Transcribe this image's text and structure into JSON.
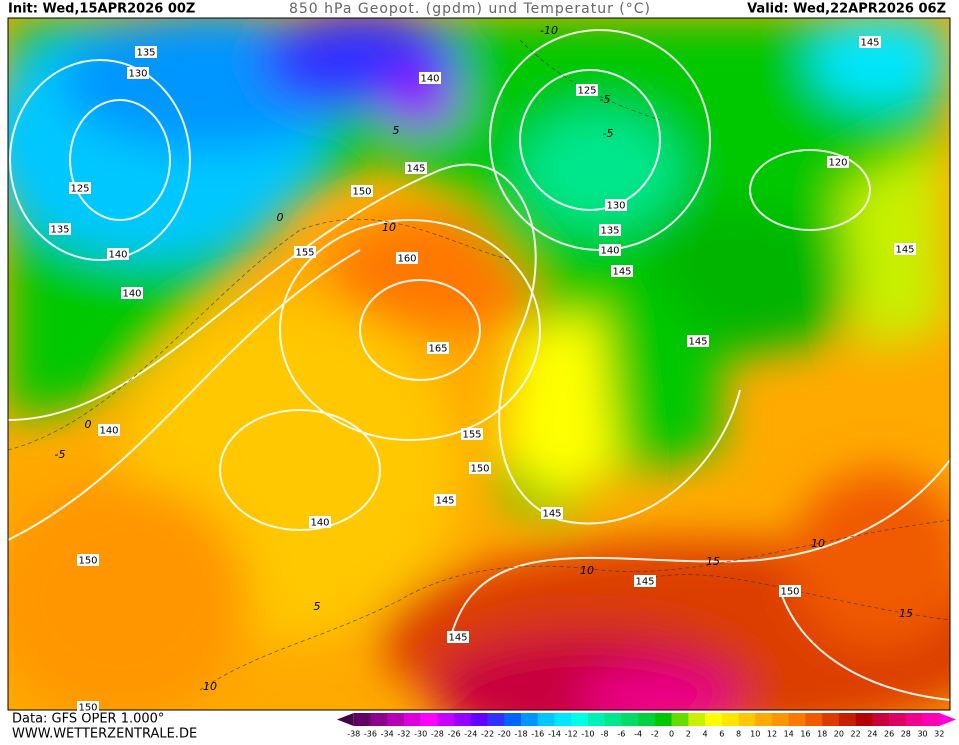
{
  "header": {
    "init": "Init: Wed,15APR2026 00Z",
    "title": "850 hPa Geopot. (gpdm) und Temperatur (°C)",
    "valid": "Valid: Wed,22APR2026 06Z"
  },
  "footer": {
    "source": "Data: GFS OPER 1.000°",
    "website": "WWW.WETTERZENTRALE.DE"
  },
  "legend": {
    "labels": [
      -38,
      -36,
      -34,
      -32,
      -30,
      -28,
      -26,
      -24,
      -22,
      -20,
      -18,
      -16,
      -14,
      -12,
      -10,
      -8,
      -6,
      -4,
      -2,
      0,
      2,
      4,
      6,
      8,
      10,
      12,
      14,
      16,
      18,
      20,
      22,
      24,
      26,
      28,
      30,
      32
    ],
    "colors": [
      "#460046",
      "#640064",
      "#8c008c",
      "#b400b4",
      "#dc00dc",
      "#ff00ff",
      "#c800ff",
      "#9600ff",
      "#6400ff",
      "#3232ff",
      "#0064ff",
      "#0096ff",
      "#00c8ff",
      "#00e6ff",
      "#00ffe6",
      "#00f0b4",
      "#00e68c",
      "#00dc64",
      "#00d23c",
      "#00c800",
      "#64dc00",
      "#c8f000",
      "#ffff00",
      "#ffe600",
      "#ffc800",
      "#ffaa00",
      "#ff9600",
      "#ff7800",
      "#f05a00",
      "#dc3c00",
      "#c81e00",
      "#b40000",
      "#c8003c",
      "#dc0064",
      "#f0008c",
      "#ff00b4",
      "#ff00dc"
    ]
  },
  "geopotential_labels": [
    135,
    130,
    125,
    135,
    140,
    140,
    140,
    150,
    150,
    140,
    145,
    145,
    150,
    155,
    165,
    160,
    155,
    150,
    145,
    140,
    125,
    130,
    135,
    140,
    145,
    145,
    145,
    145,
    150,
    145,
    120,
    145
  ],
  "temperature_labels": [
    -10,
    -5,
    -5,
    0,
    5,
    10,
    -5,
    0,
    5,
    10,
    10,
    15,
    15,
    10
  ]
}
